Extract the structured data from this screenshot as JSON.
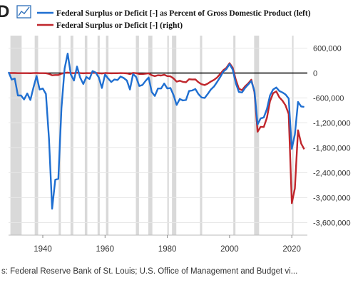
{
  "header": {
    "logo_letter": "D",
    "logo_icon": "line-chart-icon"
  },
  "source": "s: Federal Reserve Bank of St. Louis; U.S. Office of Management and Budget vi...",
  "chart_data": {
    "type": "line",
    "title": "",
    "legend_position": "top-left",
    "grid": "horizontal",
    "recession_shading": [
      [
        1929.6,
        1933.2
      ],
      [
        1937.4,
        1938.5
      ],
      [
        1945.1,
        1945.8
      ],
      [
        1948.9,
        1949.8
      ],
      [
        1953.5,
        1954.3
      ],
      [
        1957.6,
        1958.3
      ],
      [
        1960.3,
        1961.1
      ],
      [
        1969.9,
        1970.9
      ],
      [
        1973.9,
        1975.2
      ],
      [
        1980.0,
        1980.5
      ],
      [
        1981.5,
        1982.9
      ],
      [
        1990.5,
        1991.2
      ],
      [
        2001.2,
        2001.9
      ],
      [
        2007.9,
        2009.5
      ],
      [
        2020.1,
        2020.4
      ]
    ],
    "x_ticks": [
      "1940",
      "1960",
      "1980",
      "2000",
      "2020"
    ],
    "xlim": [
      1929,
      2025
    ],
    "left_axis": {
      "ylim": [
        -32,
        8
      ],
      "ticks": []
    },
    "right_axis": {
      "ylim": [
        -3900000,
        900000
      ],
      "tick_values": [
        600000,
        0,
        -600000,
        -1200000,
        -1800000,
        -2400000,
        -3000000,
        -3600000
      ],
      "tick_labels": [
        "600,000",
        "0",
        "-600,000",
        "-1,200,000",
        "-1,800,000",
        "-2,400,000",
        "-3,000,000",
        "-3,600,000"
      ]
    },
    "series": [
      {
        "name": "Federal Surplus or Deficit [-] as Percent of Gross Domestic Product (left)",
        "color": "#1f6fd1",
        "axis": "left",
        "x": [
          1929,
          1930,
          1931,
          1932,
          1933,
          1934,
          1935,
          1936,
          1937,
          1938,
          1939,
          1940,
          1941,
          1942,
          1943,
          1944,
          1945,
          1946,
          1947,
          1948,
          1949,
          1950,
          1951,
          1952,
          1953,
          1954,
          1955,
          1956,
          1957,
          1958,
          1959,
          1960,
          1961,
          1962,
          1963,
          1964,
          1965,
          1966,
          1967,
          1968,
          1969,
          1970,
          1971,
          1972,
          1973,
          1974,
          1975,
          1976,
          1977,
          1978,
          1979,
          1980,
          1981,
          1982,
          1983,
          1984,
          1985,
          1986,
          1987,
          1988,
          1989,
          1990,
          1991,
          1992,
          1993,
          1994,
          1995,
          1996,
          1997,
          1998,
          1999,
          2000,
          2001,
          2002,
          2003,
          2004,
          2005,
          2006,
          2007,
          2008,
          2009,
          2010,
          2011,
          2012,
          2013,
          2014,
          2015,
          2016,
          2017,
          2018,
          2019,
          2020,
          2021,
          2022,
          2023,
          2024
        ],
        "values": [
          0.7,
          -0.8,
          -0.6,
          -4.0,
          -4.0,
          -4.8,
          -3.6,
          -4.9,
          -2.4,
          -0.1,
          -2.8,
          -2.6,
          -3.7,
          -12.7,
          -26.7,
          -20.9,
          -20.7,
          -6.5,
          1.4,
          4.4,
          0.2,
          -1.0,
          1.8,
          -0.4,
          -1.7,
          -0.3,
          -0.7,
          0.9,
          0.6,
          -0.4,
          -2.5,
          0.2,
          -0.6,
          -1.3,
          -0.8,
          -0.9,
          -0.2,
          -0.5,
          -1.0,
          -2.8,
          0.3,
          -0.3,
          -2.1,
          -1.9,
          -1.1,
          -0.4,
          -3.3,
          -4.1,
          -2.6,
          -2.6,
          -1.6,
          -2.6,
          -2.5,
          -3.9,
          -5.9,
          -4.7,
          -5.0,
          -4.9,
          -3.1,
          -3.0,
          -2.7,
          -3.7,
          -4.4,
          -4.5,
          -3.7,
          -2.8,
          -2.2,
          -1.3,
          -0.3,
          0.8,
          1.3,
          2.3,
          1.2,
          -1.5,
          -3.3,
          -3.4,
          -2.5,
          -1.8,
          -1.1,
          -3.1,
          -9.8,
          -8.6,
          -8.4,
          -6.7,
          -4.0,
          -2.8,
          -2.4,
          -3.1,
          -3.4,
          -3.8,
          -4.6,
          -14.7,
          -11.8,
          -5.3,
          -6.2,
          -6.3
        ]
      },
      {
        "name": "Federal Surplus or Deficit [-] (right)",
        "color": "#c0262c",
        "axis": "right",
        "x": [
          1929,
          1930,
          1931,
          1932,
          1933,
          1934,
          1935,
          1936,
          1937,
          1938,
          1939,
          1940,
          1941,
          1942,
          1943,
          1944,
          1945,
          1946,
          1947,
          1948,
          1949,
          1950,
          1951,
          1952,
          1953,
          1954,
          1955,
          1956,
          1957,
          1958,
          1959,
          1960,
          1961,
          1962,
          1963,
          1964,
          1965,
          1966,
          1967,
          1968,
          1969,
          1970,
          1971,
          1972,
          1973,
          1974,
          1975,
          1976,
          1977,
          1978,
          1979,
          1980,
          1981,
          1982,
          1983,
          1984,
          1985,
          1986,
          1987,
          1988,
          1989,
          1990,
          1991,
          1992,
          1993,
          1994,
          1995,
          1996,
          1997,
          1998,
          1999,
          2000,
          2001,
          2002,
          2003,
          2004,
          2005,
          2006,
          2007,
          2008,
          2009,
          2010,
          2011,
          2012,
          2013,
          2014,
          2015,
          2016,
          2017,
          2018,
          2019,
          2020,
          2021,
          2022,
          2023,
          2024
        ],
        "values": [
          734,
          738,
          -462,
          -2735,
          -2602,
          -3586,
          -2803,
          -4304,
          -2193,
          -89,
          -2846,
          -2920,
          -4941,
          -20503,
          -54554,
          -47557,
          -47553,
          -15936,
          4018,
          11796,
          580,
          -3119,
          6102,
          -1519,
          -6493,
          -1154,
          -2993,
          3947,
          3412,
          -2769,
          -12849,
          301,
          -3335,
          -7146,
          -4756,
          -5915,
          -1411,
          -3698,
          -8643,
          -25161,
          3242,
          -2842,
          -23033,
          -23373,
          -14908,
          -6135,
          -53242,
          -73732,
          -53659,
          -59185,
          -40726,
          -73830,
          -78968,
          -127977,
          -207802,
          -185367,
          -212308,
          -221227,
          -149730,
          -155178,
          -152639,
          -221036,
          -269238,
          -290321,
          -255051,
          -203186,
          -163952,
          -107431,
          -21884,
          69270,
          125610,
          236241,
          128236,
          -157758,
          -377585,
          -412727,
          -318346,
          -248181,
          -160701,
          -458553,
          -1412688,
          -1294373,
          -1299599,
          -1076574,
          -679775,
          -484602,
          -441960,
          -584651,
          -665446,
          -779137,
          -983591,
          -3131917,
          -2775315,
          -1375909,
          -1695000,
          -1833000
        ]
      }
    ]
  }
}
